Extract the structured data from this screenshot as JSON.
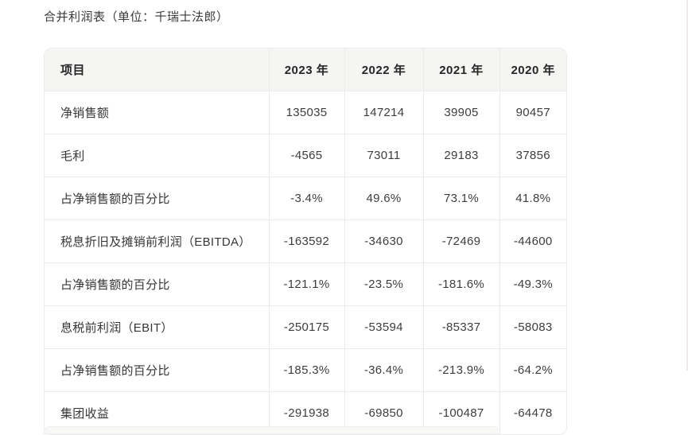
{
  "page": {
    "title": "合并利润表（单位：千瑞士法郎）"
  },
  "table": {
    "columns": [
      "项目",
      "2023 年",
      "2022 年",
      "2021 年",
      "2020 年"
    ],
    "rows": [
      {
        "label": "净销售额",
        "values": [
          "135035",
          "147214",
          "39905",
          "90457"
        ]
      },
      {
        "label": "毛利",
        "values": [
          "-4565",
          "73011",
          "29183",
          "37856"
        ]
      },
      {
        "label": "占净销售额的百分比",
        "values": [
          "-3.4%",
          "49.6%",
          "73.1%",
          "41.8%"
        ]
      },
      {
        "label": "税息折旧及摊销前利润（EBITDA）",
        "values": [
          "-163592",
          "-34630",
          "-72469",
          "-44600"
        ]
      },
      {
        "label": "占净销售额的百分比",
        "values": [
          "-121.1%",
          "-23.5%",
          "-181.6%",
          "-49.3%"
        ]
      },
      {
        "label": "息税前利润（EBIT）",
        "values": [
          "-250175",
          "-53594",
          "-85337",
          "-58083"
        ]
      },
      {
        "label": "占净销售额的百分比",
        "values": [
          "-185.3%",
          "-36.4%",
          "-213.9%",
          "-64.2%"
        ]
      },
      {
        "label": "集团收益",
        "values": [
          "-291938",
          "-69850",
          "-100487",
          "-64478"
        ]
      }
    ]
  },
  "colors": {
    "header_background": "#f5f5f3",
    "border": "#ebebeb",
    "text": "#333333",
    "page_background": "#ffffff"
  }
}
